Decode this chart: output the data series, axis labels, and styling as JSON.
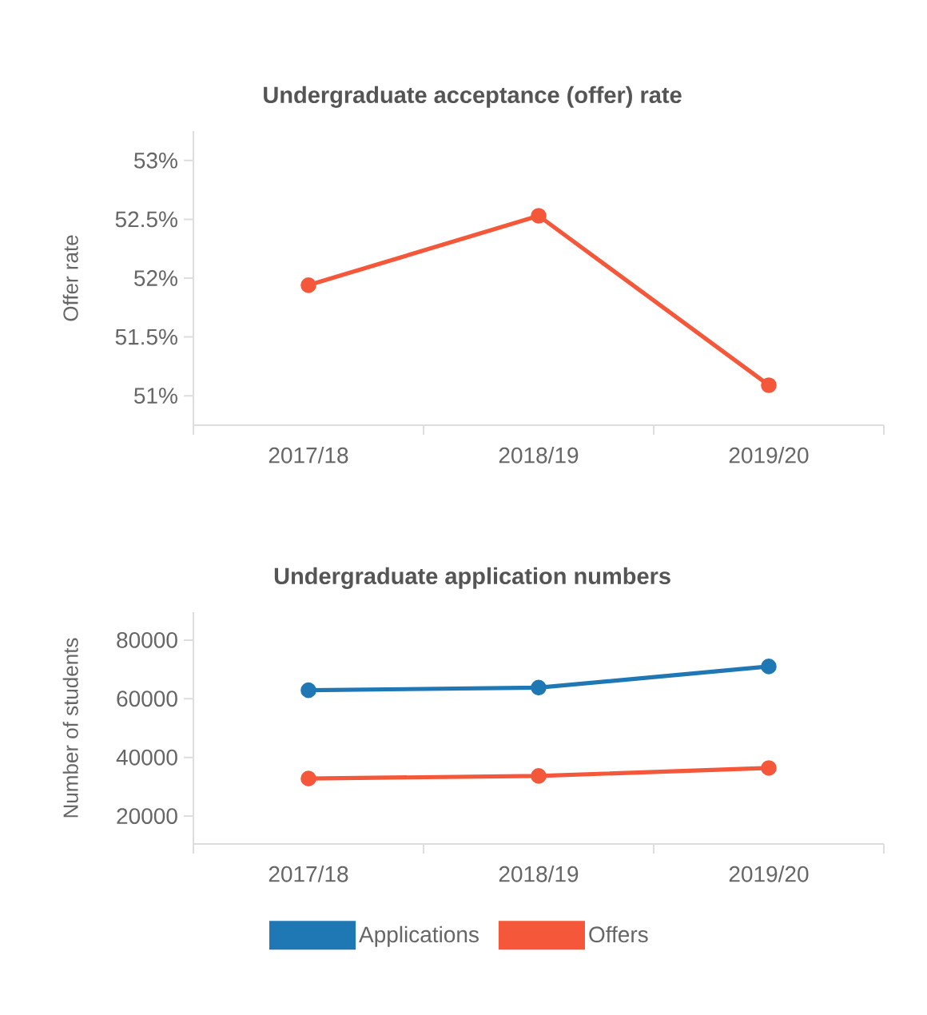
{
  "chart_data": [
    {
      "type": "line",
      "title": "Undergraduate acceptance (offer) rate",
      "ylabel": "Offer rate",
      "categories": [
        "2017/18",
        "2018/19",
        "2019/20"
      ],
      "series": [
        {
          "color": "#f4573a",
          "values": [
            51.94,
            52.53,
            51.09
          ]
        }
      ],
      "ylim": [
        50.75,
        53.25
      ],
      "yticks": [
        {
          "value": 51,
          "label": "51%"
        },
        {
          "value": 51.5,
          "label": "51.5%"
        },
        {
          "value": 52,
          "label": "52%"
        },
        {
          "value": 52.5,
          "label": "52.5%"
        },
        {
          "value": 53,
          "label": "53%"
        }
      ],
      "marker": "circle",
      "line_style": "solid"
    },
    {
      "type": "line",
      "title": "Undergraduate application numbers",
      "ylabel": "Number of students",
      "categories": [
        "2017/18",
        "2018/19",
        "2019/20"
      ],
      "series": [
        {
          "name": "Applications",
          "color": "#1f77b4",
          "values": [
            62900,
            63800,
            71000
          ]
        },
        {
          "name": "Offers",
          "color": "#f4573a",
          "values": [
            32800,
            33700,
            36400
          ]
        }
      ],
      "ylim": [
        10500,
        89500
      ],
      "yticks": [
        20000,
        40000,
        60000,
        80000
      ],
      "legend": "bottom",
      "marker": "circle",
      "line_style": "solid"
    }
  ]
}
